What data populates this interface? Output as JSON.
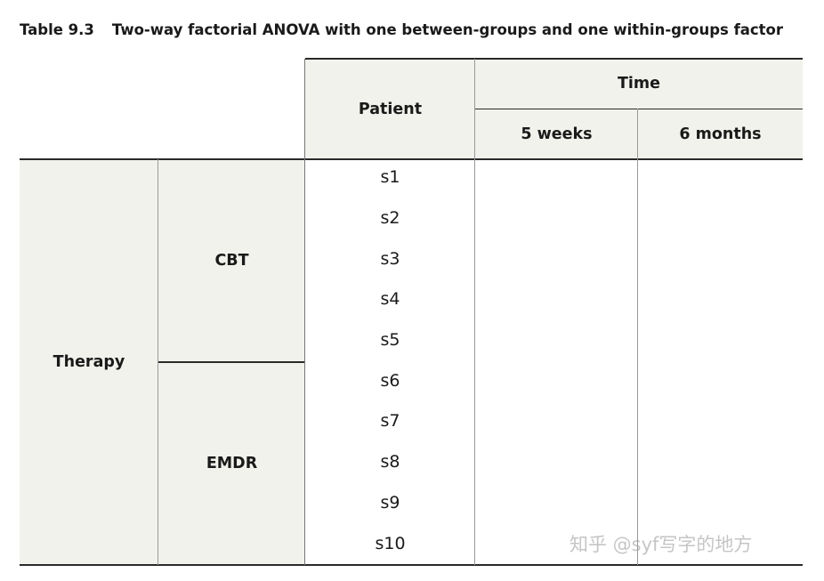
{
  "caption": {
    "label": "Table 9.3",
    "title": "Two-way factorial ANOVA with one between-groups and one within-groups factor"
  },
  "header": {
    "patient": "Patient",
    "time": "Time",
    "time_levels": [
      "5 weeks",
      "6 months"
    ]
  },
  "body": {
    "factor": "Therapy",
    "groups": [
      {
        "name": "CBT",
        "patients": [
          "s1",
          "s2",
          "s3",
          "s4",
          "s5"
        ]
      },
      {
        "name": "EMDR",
        "patients": [
          "s6",
          "s7",
          "s8",
          "s9",
          "s10"
        ]
      }
    ]
  },
  "watermark": "知乎 @syf写字的地方",
  "colors": {
    "shade": "#f2f2ec",
    "rule": "#2a2a2a",
    "divider": "#999999"
  }
}
